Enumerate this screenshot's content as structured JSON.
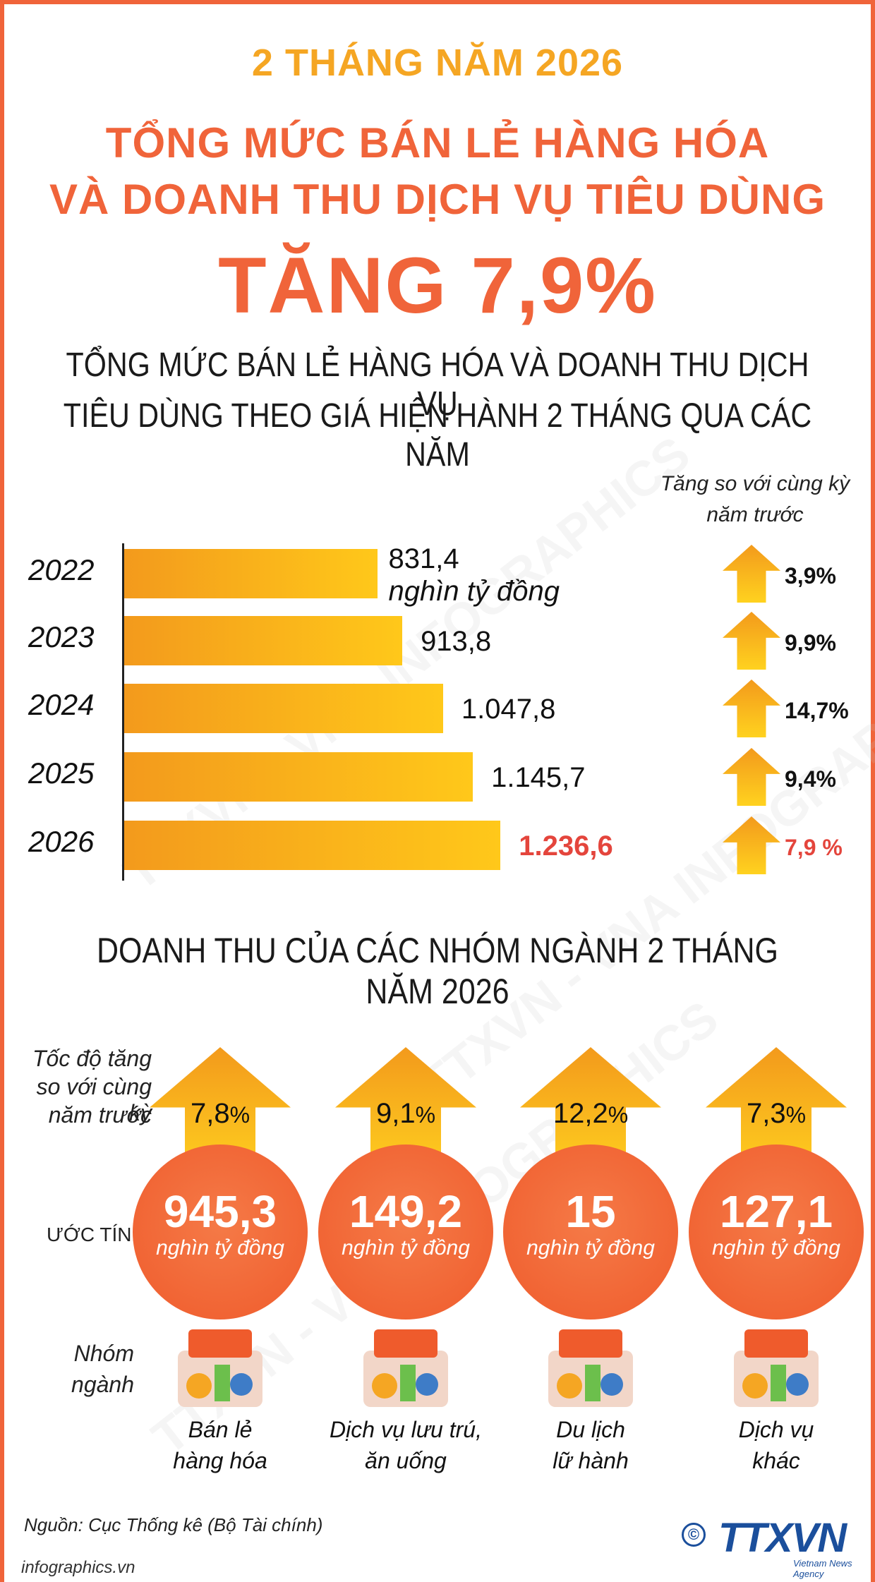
{
  "header": {
    "period": "2 THÁNG NĂM 2026",
    "headline_line1": "TỔNG MỨC BÁN LẺ HÀNG HÓA",
    "headline_line2": "VÀ DOANH THU DỊCH VỤ TIÊU DÙNG",
    "increase": "TĂNG 7,9%"
  },
  "colors": {
    "accent_orange": "#f0643a",
    "accent_yellow": "#f5a623",
    "highlight_red": "#e4453c",
    "bar_gradient_start": "#f39a1c",
    "bar_gradient_end": "#ffc81a",
    "logo_blue": "#1b4f9c"
  },
  "chart_data": [
    {
      "type": "bar",
      "orientation": "horizontal",
      "title_line1": "TỔNG MỨC BÁN LẺ HÀNG HÓA VÀ DOANH THU DỊCH VỤ",
      "title_line2": "TIÊU DÙNG THEO GIÁ HIỆN HÀNH 2 THÁNG QUA CÁC NĂM",
      "yoy_header_line1": "Tăng so với cùng kỳ",
      "yoy_header_line2": "năm trước",
      "unit": "nghìn tỷ đồng",
      "categories": [
        "2022",
        "2023",
        "2024",
        "2025",
        "2026"
      ],
      "values": [
        831.4,
        913.8,
        1047.8,
        1145.7,
        1236.6
      ],
      "value_labels": [
        "831,4",
        "913,8",
        "1.047,8",
        "1.145,7",
        "1.236,6"
      ],
      "yoy_growth_labels": [
        "3,9%",
        "9,9%",
        "14,7%",
        "9,4%",
        "7,9 %"
      ],
      "yoy_growth": [
        3.9,
        9.9,
        14.7,
        9.4,
        7.9
      ],
      "highlight_category": "2026"
    },
    {
      "type": "table",
      "title": "DOANH THU CỦA CÁC NHÓM NGÀNH 2 THÁNG NĂM 2026",
      "growth_label_lines": [
        "Tốc độ tăng",
        "so với cùng kỳ",
        "năm trước"
      ],
      "estimate_label": "ƯỚC TÍNH",
      "group_label_lines": [
        "Nhóm",
        "ngành"
      ],
      "unit": "nghìn tỷ đồng",
      "rows": [
        {
          "category_line1": "Bán lẻ",
          "category_line2": "hàng hóa",
          "growth_num": "7,8",
          "growth_pct_sign": "%",
          "revenue": "945,3",
          "icon": "shop-basket-icon"
        },
        {
          "category_line1": "Dịch vụ lưu trú,",
          "category_line2": "ăn uống",
          "growth_num": "9,1",
          "growth_pct_sign": "%",
          "revenue": "149,2",
          "icon": "restaurant-dining-icon"
        },
        {
          "category_line1": "Du lịch",
          "category_line2": "lữ hành",
          "growth_num": "12,2",
          "growth_pct_sign": "%",
          "revenue": "15",
          "icon": "travel-family-icon"
        },
        {
          "category_line1": "Dịch vụ",
          "category_line2": "khác",
          "growth_num": "7,3",
          "growth_pct_sign": "%",
          "revenue": "127,1",
          "icon": "analytics-charts-icon"
        }
      ]
    }
  ],
  "footer": {
    "source": "Nguồn: Cục Thống kê (Bộ Tài chính)",
    "site": "infographics.vn",
    "copyright_symbol": "©",
    "logo_text": "TTXVN",
    "logo_subtext": "Vietnam News Agency"
  },
  "watermark": "TTXVN - VNA INFOGRAPHICS"
}
